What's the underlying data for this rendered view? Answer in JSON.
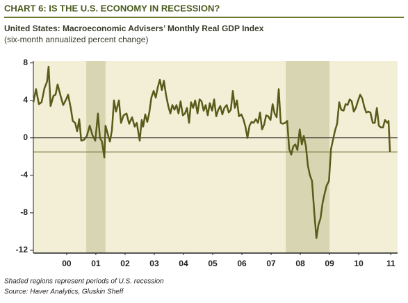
{
  "chart_data": {
    "type": "line",
    "title": "CHART 6: IS THE U.S. ECONOMY IN RECESSION?",
    "subtitle": "United States: Macroeconomic Advisers’ Monthly Real GDP Index",
    "y_label": "(six-month annualized percent change)",
    "notes": [
      "Shaded regions represent periods of U.S. recession",
      "Source: Haver Analytics, Gluskin Sheff"
    ],
    "color": "#5a5a1a",
    "recessions": [
      [
        2001.17,
        2001.83
      ],
      [
        2008.0,
        2009.5
      ]
    ],
    "hlines": [
      0,
      -1.5
    ],
    "xlim": [
      1999.36,
      2011.83
    ],
    "ylim": [
      -12.3,
      8.2
    ],
    "yticks": [
      8,
      4,
      0,
      -4,
      -8,
      -12
    ],
    "xticks": [
      {
        "value": 2000.5,
        "label": "00"
      },
      {
        "value": 2001.5,
        "label": "01"
      },
      {
        "value": 2002.5,
        "label": "02"
      },
      {
        "value": 2003.5,
        "label": "03"
      },
      {
        "value": 2004.5,
        "label": "04"
      },
      {
        "value": 2005.5,
        "label": "05"
      },
      {
        "value": 2006.5,
        "label": "06"
      },
      {
        "value": 2007.5,
        "label": "07"
      },
      {
        "value": 2008.5,
        "label": "08"
      },
      {
        "value": 2009.5,
        "label": "09"
      },
      {
        "value": 2010.5,
        "label": "10"
      },
      {
        "value": 2011.6,
        "label": "11"
      }
    ],
    "x": [
      1999.36,
      1999.45,
      1999.55,
      1999.64,
      1999.74,
      1999.83,
      1999.88,
      1999.95,
      2000.05,
      2000.12,
      2000.19,
      2000.29,
      2000.38,
      2000.48,
      2000.55,
      2000.64,
      2000.71,
      2000.79,
      2000.86,
      2000.93,
      2001.0,
      2001.1,
      2001.19,
      2001.29,
      2001.38,
      2001.48,
      2001.57,
      2001.64,
      2001.71,
      2001.79,
      2001.83,
      2001.9,
      2001.98,
      2002.05,
      2002.12,
      2002.19,
      2002.29,
      2002.36,
      2002.45,
      2002.55,
      2002.64,
      2002.74,
      2002.83,
      2002.9,
      2003.0,
      2003.07,
      2003.12,
      2003.19,
      2003.26,
      2003.33,
      2003.4,
      2003.48,
      2003.55,
      2003.62,
      2003.69,
      2003.76,
      2003.83,
      2003.9,
      2003.98,
      2004.05,
      2004.12,
      2004.19,
      2004.26,
      2004.33,
      2004.4,
      2004.48,
      2004.55,
      2004.62,
      2004.69,
      2004.76,
      2004.83,
      2004.9,
      2004.98,
      2005.05,
      2005.12,
      2005.19,
      2005.26,
      2005.33,
      2005.4,
      2005.48,
      2005.55,
      2005.62,
      2005.69,
      2005.76,
      2005.83,
      2005.9,
      2005.98,
      2006.05,
      2006.12,
      2006.19,
      2006.26,
      2006.33,
      2006.4,
      2006.48,
      2006.55,
      2006.62,
      2006.69,
      2006.76,
      2006.83,
      2006.9,
      2006.98,
      2007.05,
      2007.12,
      2007.19,
      2007.26,
      2007.33,
      2007.4,
      2007.48,
      2007.55,
      2007.62,
      2007.69,
      2007.76,
      2007.83,
      2007.9,
      2007.98,
      2008.05,
      2008.12,
      2008.19,
      2008.26,
      2008.33,
      2008.4,
      2008.48,
      2008.55,
      2008.62,
      2008.69,
      2008.76,
      2008.83,
      2008.9,
      2008.98,
      2009.05,
      2009.12,
      2009.19,
      2009.26,
      2009.33,
      2009.4,
      2009.48,
      2009.55,
      2009.62,
      2009.69,
      2009.76,
      2009.83,
      2009.9,
      2009.98,
      2010.05,
      2010.12,
      2010.19,
      2010.26,
      2010.33,
      2010.4,
      2010.48,
      2010.55,
      2010.62,
      2010.69,
      2010.76,
      2010.83,
      2010.9,
      2010.98,
      2011.05,
      2011.12,
      2011.19,
      2011.26,
      2011.33,
      2011.4,
      2011.48,
      2011.52,
      2011.57
    ],
    "values": [
      3.8,
      5.2,
      3.6,
      3.8,
      5.3,
      6.0,
      7.6,
      3.4,
      4.5,
      4.6,
      5.7,
      4.5,
      3.5,
      4.1,
      4.6,
      3.2,
      1.8,
      1.6,
      0.7,
      2.0,
      -0.3,
      -0.2,
      0.2,
      1.3,
      0.3,
      -0.3,
      2.6,
      0.0,
      -0.4,
      -2.1,
      1.3,
      0.5,
      -0.4,
      0.8,
      4.0,
      2.8,
      4.0,
      1.6,
      2.4,
      2.6,
      1.5,
      2.2,
      1.2,
      1.6,
      -0.3,
      1.9,
      1.2,
      2.5,
      1.7,
      2.7,
      4.3,
      5.0,
      4.3,
      5.4,
      6.2,
      5.1,
      6.1,
      4.6,
      3.4,
      2.6,
      3.5,
      3.0,
      3.5,
      2.6,
      3.9,
      2.4,
      2.6,
      3.2,
      1.6,
      3.8,
      3.2,
      4.0,
      2.6,
      4.1,
      3.9,
      2.9,
      3.5,
      2.4,
      3.7,
      2.9,
      4.1,
      2.3,
      3.0,
      3.4,
      2.5,
      3.2,
      3.5,
      2.7,
      3.0,
      5.0,
      3.2,
      4.0,
      2.3,
      2.5,
      2.0,
      1.2,
      0.0,
      1.3,
      1.7,
      1.6,
      2.0,
      1.6,
      2.7,
      0.9,
      1.4,
      2.4,
      2.3,
      1.9,
      3.6,
      2.6,
      2.2,
      5.2,
      1.6,
      1.5,
      1.6,
      1.8,
      -1.2,
      -1.8,
      -0.9,
      -0.7,
      -1.3,
      0.9,
      -0.7,
      0.2,
      -0.9,
      -3.0,
      -4.0,
      -4.6,
      -8.0,
      -10.7,
      -9.3,
      -8.6,
      -7.0,
      -6.0,
      -5.1,
      -4.6,
      -1.2,
      -0.2,
      0.8,
      1.5,
      3.8,
      3.0,
      2.9,
      3.6,
      3.5,
      4.1,
      3.9,
      2.8,
      3.2,
      4.0,
      4.6,
      4.2,
      3.3,
      2.7,
      2.8,
      2.7,
      1.6,
      1.6,
      3.2,
      1.3,
      1.1,
      1.1,
      1.9,
      1.6,
      1.8,
      -1.5
    ]
  }
}
